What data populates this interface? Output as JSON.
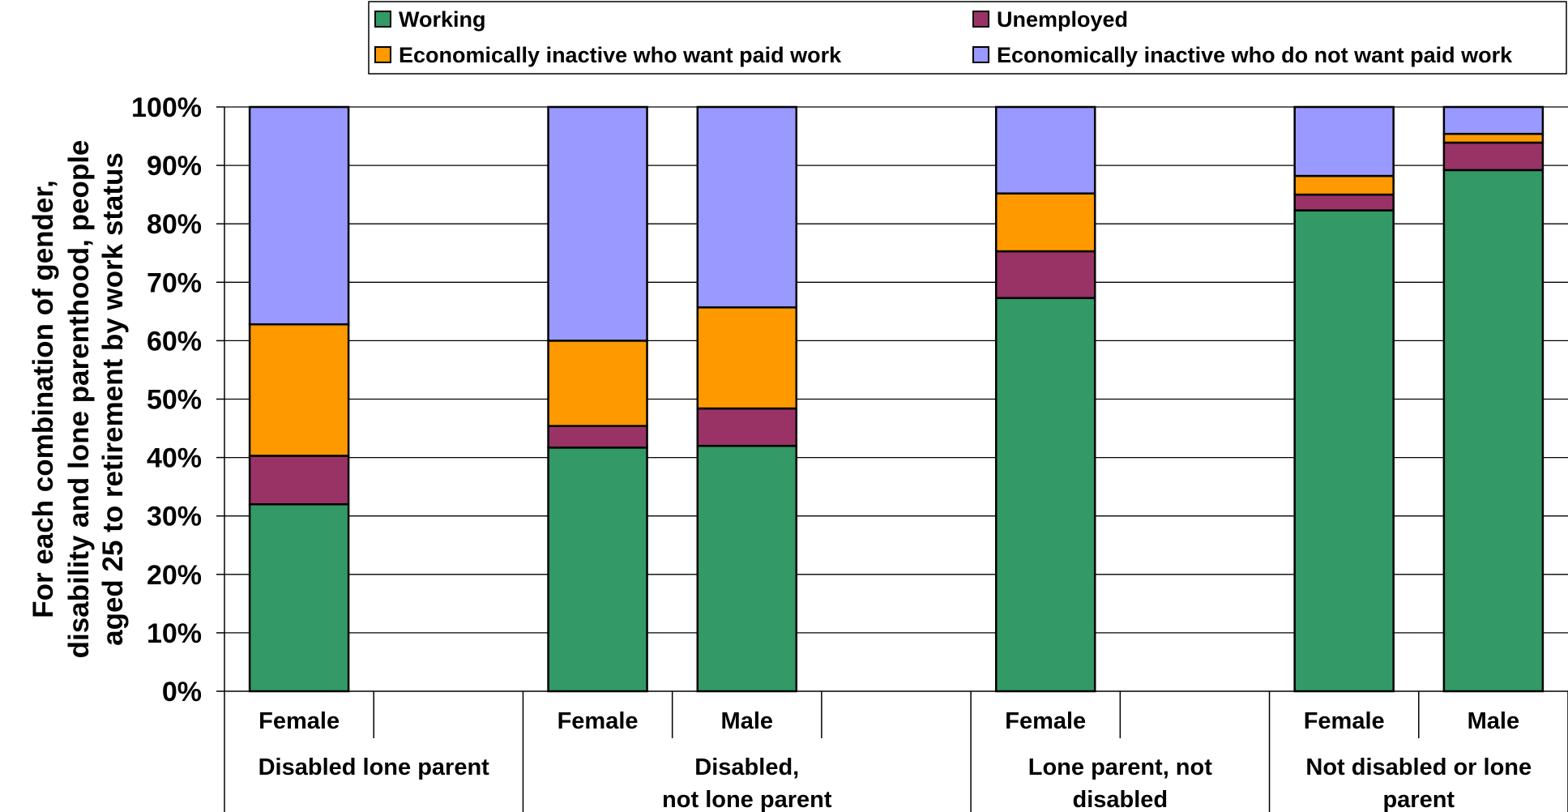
{
  "chart_data": {
    "type": "bar",
    "stacked": true,
    "percent": true,
    "ylabel_lines": [
      "For each combination of gender,",
      "disability and lone parenthood, people",
      "aged 25 to retirement by work status"
    ],
    "ylim": [
      0,
      100
    ],
    "yticks": [
      "0%",
      "10%",
      "20%",
      "30%",
      "40%",
      "50%",
      "60%",
      "70%",
      "80%",
      "90%",
      "100%"
    ],
    "grid": true,
    "legend_position": "top",
    "groups": [
      {
        "label_lines": [
          "Disabled lone parent"
        ],
        "slots": 2
      },
      {
        "label_lines": [
          "Disabled,",
          "not lone parent"
        ],
        "slots": 3
      },
      {
        "label_lines": [
          "Lone parent, not",
          "disabled"
        ],
        "slots": 2
      },
      {
        "label_lines": [
          "Not disabled or lone",
          "parent"
        ],
        "slots": 2
      }
    ],
    "categories": [
      {
        "label": "Female",
        "group": 0,
        "slot": 0,
        "has_bar": true
      },
      {
        "label": "",
        "group": 0,
        "slot": 1,
        "has_bar": false
      },
      {
        "label": "Female",
        "group": 1,
        "slot": 0,
        "has_bar": true
      },
      {
        "label": "Male",
        "group": 1,
        "slot": 1,
        "has_bar": true
      },
      {
        "label": "",
        "group": 1,
        "slot": 2,
        "has_bar": false
      },
      {
        "label": "Female",
        "group": 2,
        "slot": 0,
        "has_bar": true
      },
      {
        "label": "",
        "group": 2,
        "slot": 1,
        "has_bar": false
      },
      {
        "label": "Female",
        "group": 3,
        "slot": 0,
        "has_bar": true
      },
      {
        "label": "Male",
        "group": 3,
        "slot": 1,
        "has_bar": true
      }
    ],
    "series": [
      {
        "name": "Working",
        "color": "#339966",
        "values": [
          32,
          null,
          41.7,
          42,
          null,
          67.3,
          null,
          82.3,
          89.2
        ]
      },
      {
        "name": "Unemployed",
        "color": "#993366",
        "values": [
          8.3,
          null,
          3.7,
          6.4,
          null,
          8,
          null,
          2.7,
          4.7
        ]
      },
      {
        "name": "Economically inactive who want paid work",
        "color": "#ff9900",
        "values": [
          22.5,
          null,
          14.6,
          17.3,
          null,
          9.9,
          null,
          3.2,
          1.5
        ]
      },
      {
        "name": "Economically inactive who do not want paid work",
        "color": "#9999ff",
        "values": [
          37.2,
          null,
          40,
          34.3,
          null,
          14.8,
          null,
          11.8,
          4.6
        ]
      }
    ]
  }
}
